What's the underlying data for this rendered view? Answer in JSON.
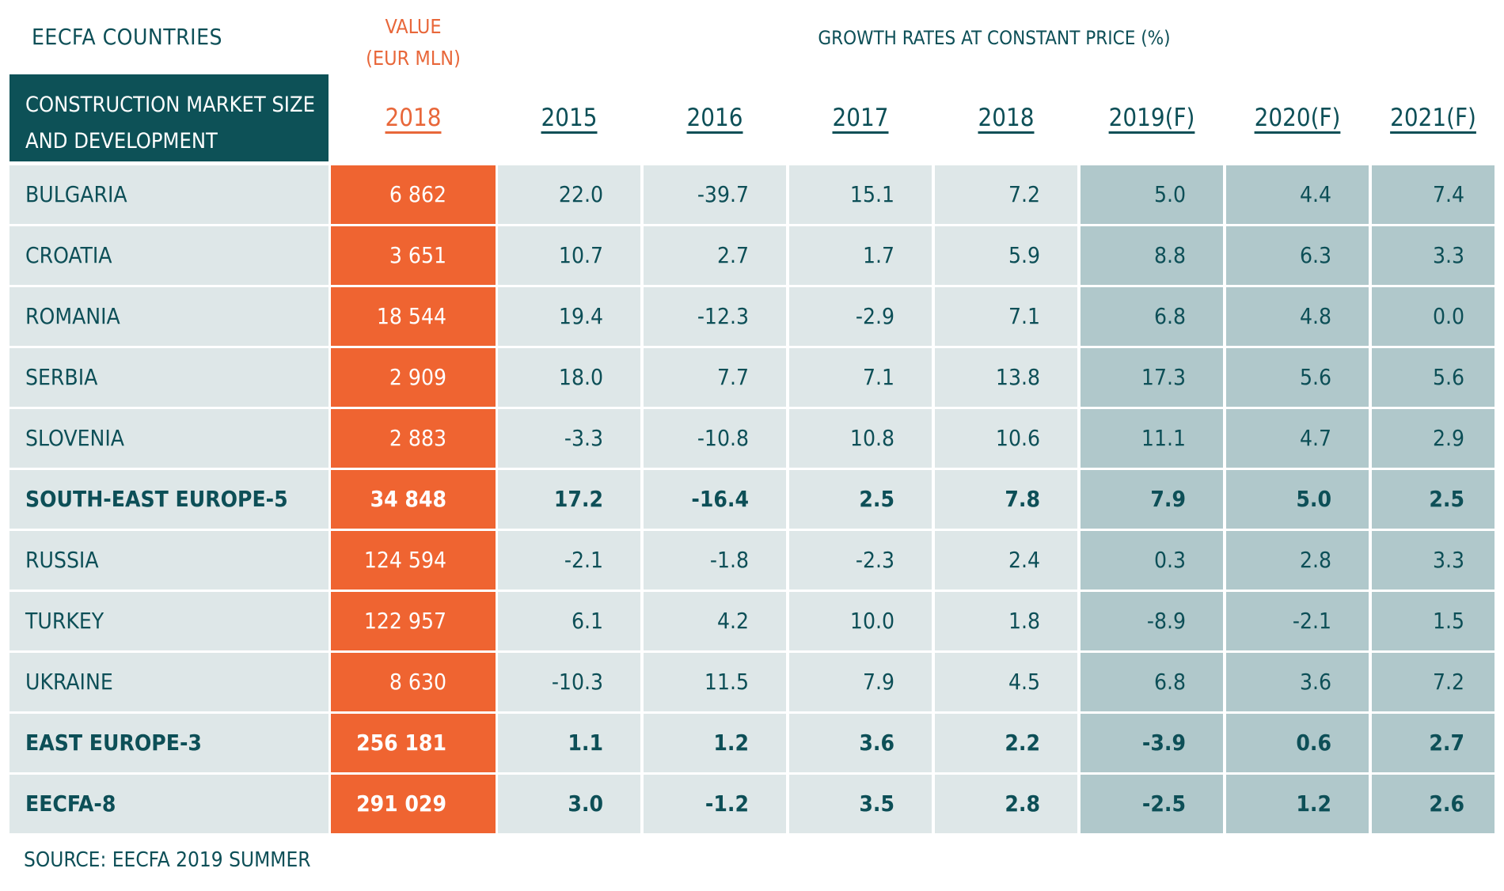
{
  "header": {
    "region_label": "EECFA COUNTRIES",
    "value_label_line1": "VALUE",
    "value_label_line2": "(EUR MLN)",
    "growth_label": "GROWTH RATES AT CONSTANT PRICE (%)",
    "corner_line1": "CONSTRUCTION MARKET SIZE",
    "corner_line2": "AND DEVELOPMENT",
    "value_year": "2018",
    "growth_years": [
      "2015",
      "2016",
      "2017",
      "2018",
      "2019(F)",
      "2020(F)",
      "2021(F)"
    ]
  },
  "source": "SOURCE: EECFA 2019 SUMMER",
  "chart_data": {
    "type": "table",
    "columns": [
      "2018",
      "2015",
      "2016",
      "2017",
      "2018",
      "2019(F)",
      "2020(F)",
      "2021(F)"
    ],
    "rows": [
      {
        "name": "BULGARIA",
        "bold": false,
        "value": "6 862",
        "growth": [
          "22.0",
          "-39.7",
          "15.1",
          "7.2",
          "5.0",
          "4.4",
          "7.4"
        ]
      },
      {
        "name": "CROATIA",
        "bold": false,
        "value": "3 651",
        "growth": [
          "10.7",
          "2.7",
          "1.7",
          "5.9",
          "8.8",
          "6.3",
          "3.3"
        ]
      },
      {
        "name": "ROMANIA",
        "bold": false,
        "value": "18 544",
        "growth": [
          "19.4",
          "-12.3",
          "-2.9",
          "7.1",
          "6.8",
          "4.8",
          "0.0"
        ]
      },
      {
        "name": "SERBIA",
        "bold": false,
        "value": "2 909",
        "growth": [
          "18.0",
          "7.7",
          "7.1",
          "13.8",
          "17.3",
          "5.6",
          "5.6"
        ]
      },
      {
        "name": "SLOVENIA",
        "bold": false,
        "value": "2 883",
        "growth": [
          "-3.3",
          "-10.8",
          "10.8",
          "10.6",
          "11.1",
          "4.7",
          "2.9"
        ]
      },
      {
        "name": "SOUTH-EAST EUROPE-5",
        "bold": true,
        "value": "34 848",
        "growth": [
          "17.2",
          "-16.4",
          "2.5",
          "7.8",
          "7.9",
          "5.0",
          "2.5"
        ]
      },
      {
        "name": "RUSSIA",
        "bold": false,
        "value": "124 594",
        "growth": [
          "-2.1",
          "-1.8",
          "-2.3",
          "2.4",
          "0.3",
          "2.8",
          "3.3"
        ]
      },
      {
        "name": "TURKEY",
        "bold": false,
        "value": "122 957",
        "growth": [
          "6.1",
          "4.2",
          "10.0",
          "1.8",
          "-8.9",
          "-2.1",
          "1.5"
        ]
      },
      {
        "name": "UKRAINE",
        "bold": false,
        "value": "8 630",
        "growth": [
          "-10.3",
          "11.5",
          "7.9",
          "4.5",
          "6.8",
          "3.6",
          "7.2"
        ]
      },
      {
        "name": "EAST EUROPE-3",
        "bold": true,
        "value": "256 181",
        "growth": [
          "1.1",
          "1.2",
          "3.6",
          "2.2",
          "-3.9",
          "0.6",
          "2.7"
        ]
      },
      {
        "name": "EECFA-8",
        "bold": true,
        "value": "291 029",
        "growth": [
          "3.0",
          "-1.2",
          "3.5",
          "2.8",
          "-2.5",
          "1.2",
          "2.6"
        ]
      }
    ],
    "colors": {
      "header_fill": "#0d5157",
      "value_fill": "#ef6431",
      "historic_fill": "#dee7e8",
      "forecast_fill": "#b0c8cb",
      "text": "#0d4f57",
      "accent": "#e8673a"
    }
  }
}
